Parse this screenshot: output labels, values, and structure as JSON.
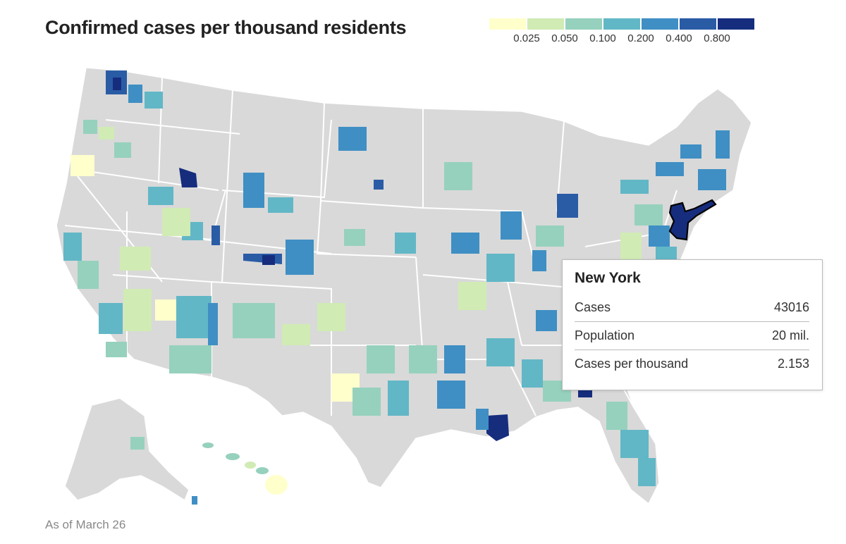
{
  "title": "Confirmed cases per thousand residents",
  "legend": {
    "colors": [
      "#ffffcc",
      "#d0ebb4",
      "#96d1bd",
      "#62b7c6",
      "#3f8fc4",
      "#2a5ca6",
      "#162d7e"
    ],
    "ticks": [
      "0.025",
      "0.050",
      "0.100",
      "0.200",
      "0.400",
      "0.800"
    ]
  },
  "map": {
    "no_data_color": "#d9d9d9",
    "state_border_color": "#ffffff",
    "highlight": {
      "name": "New York",
      "outline_color": "#000000"
    }
  },
  "tooltip": {
    "title": "New York",
    "rows": [
      {
        "label": "Cases",
        "value": "43016"
      },
      {
        "label": "Population",
        "value": "20 mil."
      },
      {
        "label": "Cases per thousand",
        "value": "2.153"
      }
    ]
  },
  "footnote": "As of March 26"
}
